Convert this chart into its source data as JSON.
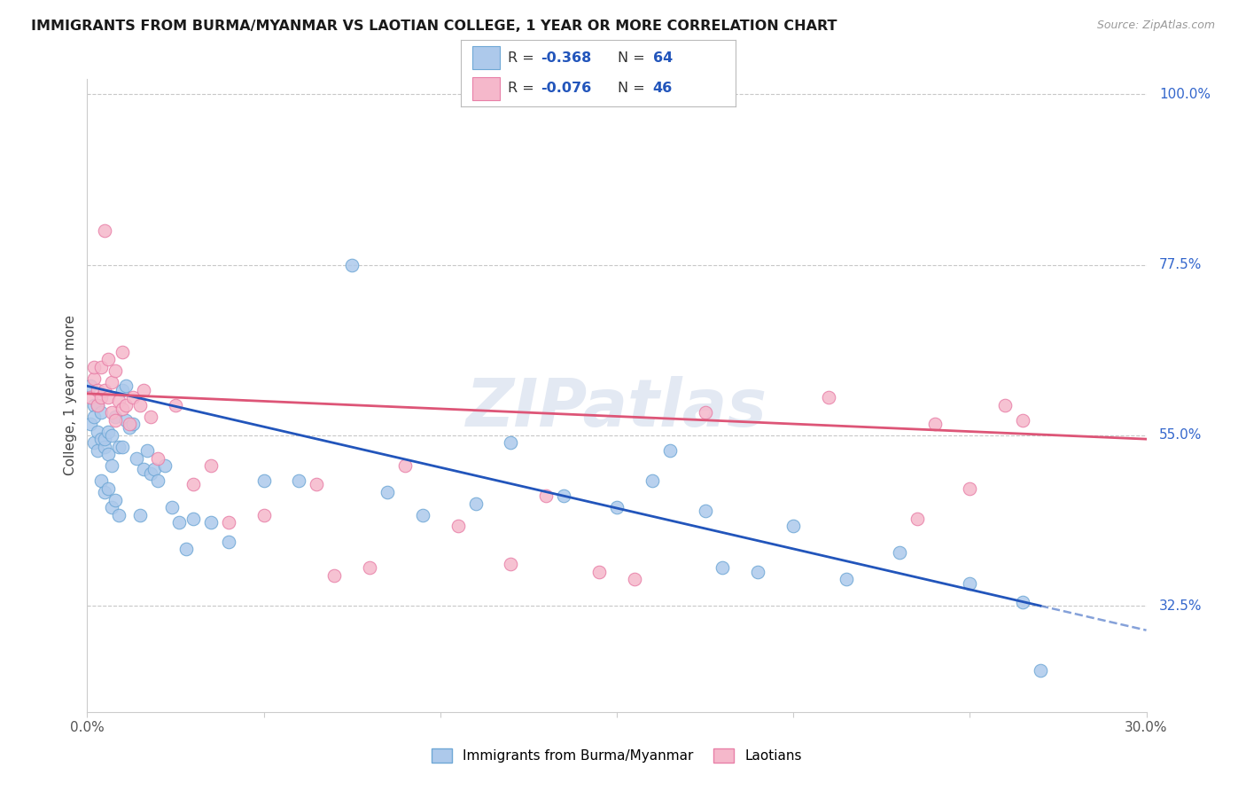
{
  "title": "IMMIGRANTS FROM BURMA/MYANMAR VS LAOTIAN COLLEGE, 1 YEAR OR MORE CORRELATION CHART",
  "source": "Source: ZipAtlas.com",
  "ylabel": "College, 1 year or more",
  "series1_label": "Immigrants from Burma/Myanmar",
  "series2_label": "Laotians",
  "series1_color": "#adc9eb",
  "series2_color": "#f5b8cb",
  "series1_edge": "#6fa8d6",
  "series2_edge": "#e880a8",
  "line1_color": "#2255bb",
  "line2_color": "#dd5577",
  "watermark": "ZIPatlas",
  "background_color": "#ffffff",
  "grid_color": "#c8c8c8",
  "xmin": 0.0,
  "xmax": 0.3,
  "ymin": 0.185,
  "ymax": 1.02,
  "ytick_vals": [
    0.325,
    0.55,
    0.775,
    1.0
  ],
  "ytick_labels": [
    "32.5%",
    "55.0%",
    "77.5%",
    "100.0%"
  ],
  "xtick_vals": [
    0.0,
    0.05,
    0.1,
    0.15,
    0.2,
    0.25,
    0.3
  ],
  "blue_line_x0": 0.0,
  "blue_line_y0": 0.615,
  "blue_line_x1": 0.27,
  "blue_line_y1": 0.325,
  "pink_line_x0": 0.0,
  "pink_line_y0": 0.605,
  "pink_line_x1": 0.3,
  "pink_line_y1": 0.545,
  "blue_x": [
    0.001,
    0.001,
    0.002,
    0.002,
    0.002,
    0.003,
    0.003,
    0.003,
    0.004,
    0.004,
    0.004,
    0.005,
    0.005,
    0.005,
    0.006,
    0.006,
    0.006,
    0.007,
    0.007,
    0.007,
    0.008,
    0.008,
    0.009,
    0.009,
    0.01,
    0.01,
    0.011,
    0.011,
    0.012,
    0.013,
    0.014,
    0.015,
    0.016,
    0.017,
    0.018,
    0.019,
    0.02,
    0.022,
    0.024,
    0.026,
    0.028,
    0.03,
    0.035,
    0.04,
    0.05,
    0.06,
    0.075,
    0.085,
    0.095,
    0.11,
    0.12,
    0.135,
    0.15,
    0.16,
    0.165,
    0.175,
    0.18,
    0.19,
    0.2,
    0.215,
    0.23,
    0.25,
    0.265,
    0.27
  ],
  "blue_y": [
    0.615,
    0.565,
    0.59,
    0.54,
    0.575,
    0.555,
    0.53,
    0.59,
    0.545,
    0.58,
    0.49,
    0.535,
    0.475,
    0.545,
    0.555,
    0.48,
    0.525,
    0.51,
    0.55,
    0.455,
    0.575,
    0.465,
    0.535,
    0.445,
    0.535,
    0.61,
    0.615,
    0.57,
    0.56,
    0.565,
    0.52,
    0.445,
    0.505,
    0.53,
    0.5,
    0.505,
    0.49,
    0.51,
    0.455,
    0.435,
    0.4,
    0.44,
    0.435,
    0.41,
    0.49,
    0.49,
    0.775,
    0.475,
    0.445,
    0.46,
    0.54,
    0.47,
    0.455,
    0.49,
    0.53,
    0.45,
    0.375,
    0.37,
    0.43,
    0.36,
    0.395,
    0.355,
    0.33,
    0.24
  ],
  "pink_x": [
    0.001,
    0.002,
    0.002,
    0.003,
    0.003,
    0.004,
    0.004,
    0.005,
    0.005,
    0.006,
    0.006,
    0.007,
    0.007,
    0.008,
    0.008,
    0.009,
    0.01,
    0.01,
    0.011,
    0.012,
    0.013,
    0.015,
    0.016,
    0.018,
    0.02,
    0.025,
    0.03,
    0.035,
    0.04,
    0.05,
    0.065,
    0.07,
    0.08,
    0.09,
    0.105,
    0.12,
    0.13,
    0.145,
    0.155,
    0.175,
    0.21,
    0.235,
    0.24,
    0.25,
    0.26,
    0.265
  ],
  "pink_y": [
    0.6,
    0.625,
    0.64,
    0.61,
    0.59,
    0.64,
    0.6,
    0.82,
    0.61,
    0.65,
    0.6,
    0.62,
    0.58,
    0.635,
    0.57,
    0.595,
    0.66,
    0.585,
    0.59,
    0.565,
    0.6,
    0.59,
    0.61,
    0.575,
    0.52,
    0.59,
    0.485,
    0.51,
    0.435,
    0.445,
    0.485,
    0.365,
    0.375,
    0.51,
    0.43,
    0.38,
    0.47,
    0.37,
    0.36,
    0.58,
    0.6,
    0.44,
    0.565,
    0.48,
    0.59,
    0.57
  ]
}
